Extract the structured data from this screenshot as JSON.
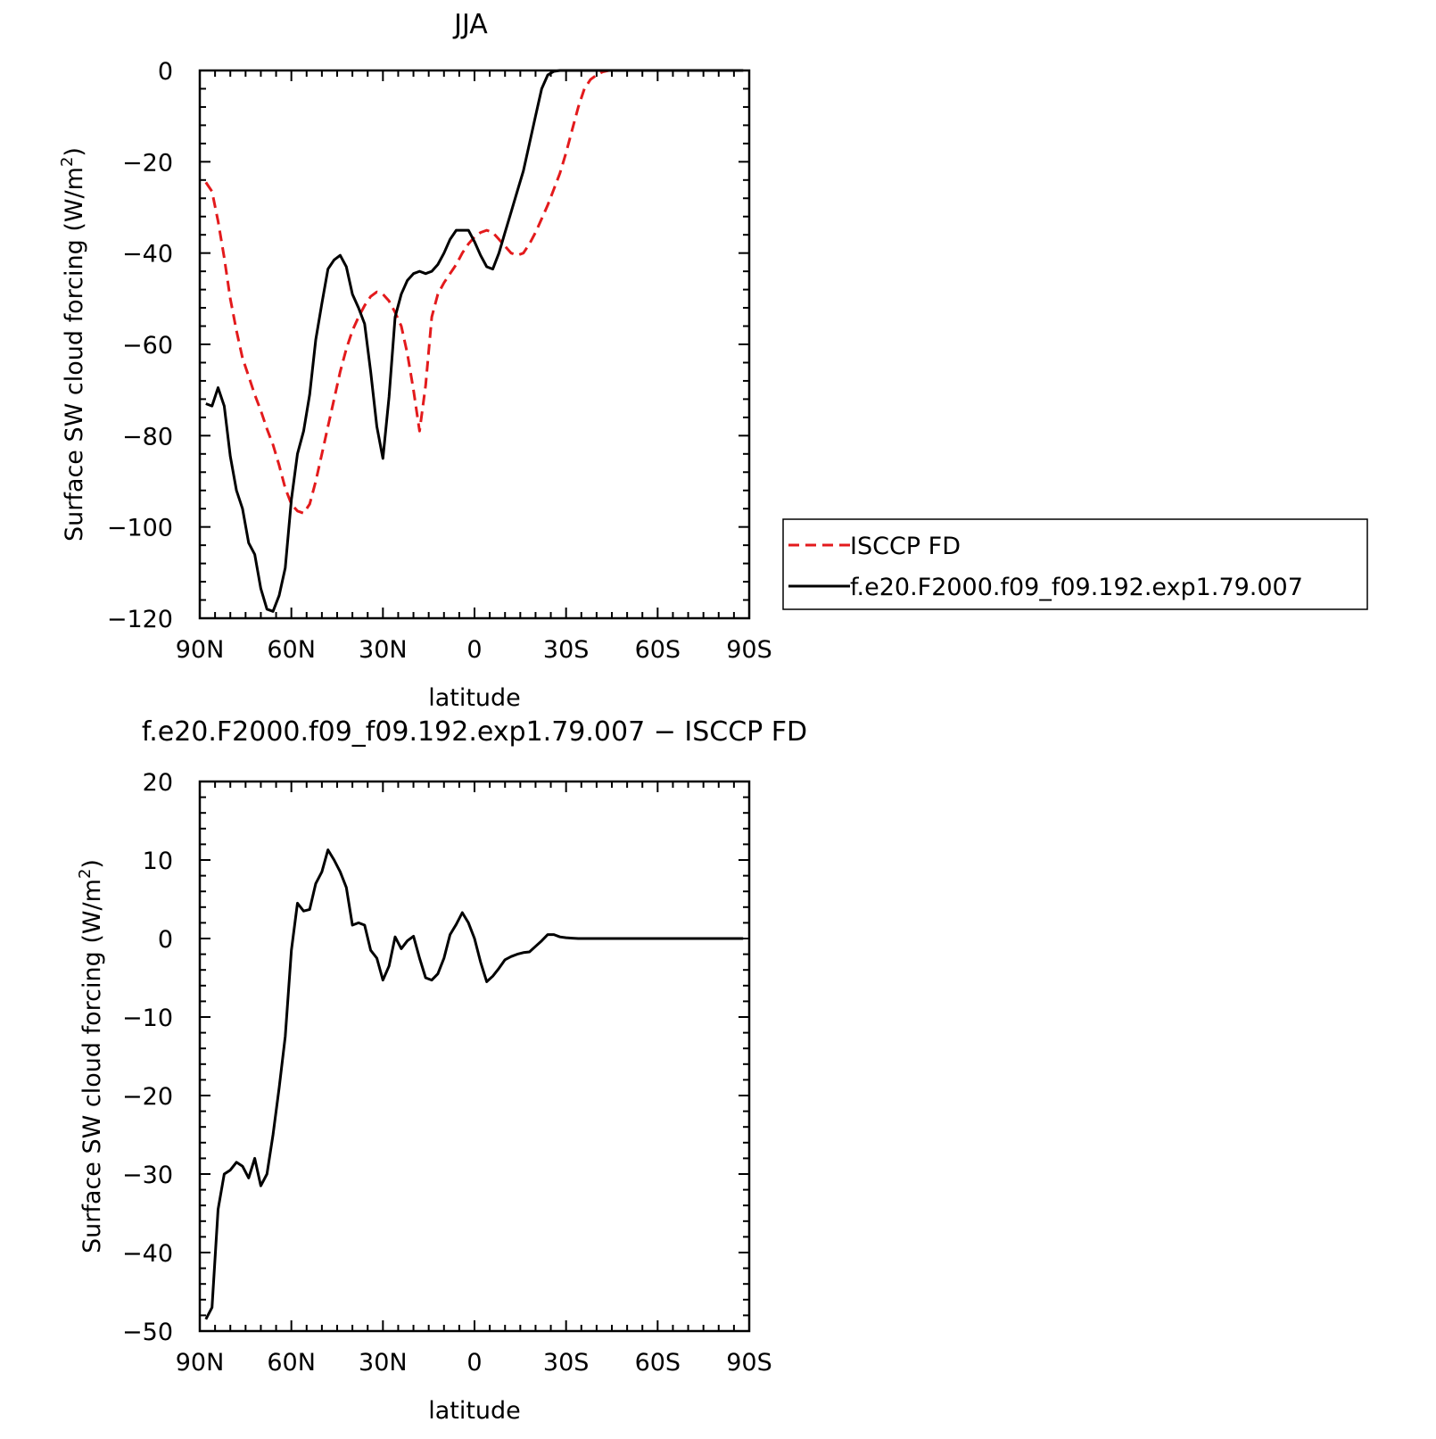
{
  "figure": {
    "top_title": "JJA",
    "bottom_title": "f.e20.F2000.f09_f09.192.exp1.79.007 − ISCCP FD"
  },
  "chart_data": [
    {
      "type": "line",
      "title": "JJA",
      "xlabel": "latitude",
      "ylabel_main": "Surface SW cloud forcing (W/m",
      "ylabel_sup": "2",
      "ylabel_end": ")",
      "xlim": [
        90,
        -90
      ],
      "ylim": [
        -120,
        0
      ],
      "xticks": [
        90,
        60,
        30,
        0,
        -30,
        -60,
        -90
      ],
      "xticklabels": [
        "90N",
        "60N",
        "30N",
        "0",
        "30S",
        "60S",
        "90S"
      ],
      "yticks": [
        0,
        -20,
        -40,
        -60,
        -80,
        -100,
        -120
      ],
      "yticklabels": [
        "0",
        "−20",
        "−40",
        "−60",
        "−80",
        "−100",
        "−120"
      ],
      "legend": {
        "placement": "right-outside"
      },
      "series": [
        {
          "name": "ISCCP FD",
          "color": "#e31a1c",
          "dash": "dashed",
          "x": [
            88,
            86,
            84,
            82,
            80,
            78,
            76,
            74,
            72,
            70,
            68,
            66,
            64,
            62,
            60,
            58,
            56,
            54,
            52,
            50,
            48,
            46,
            44,
            42,
            40,
            38,
            36,
            34,
            32,
            30,
            28,
            26,
            24,
            22,
            20,
            18,
            16,
            14,
            12,
            10,
            8,
            6,
            4,
            2,
            0,
            -2,
            -4,
            -6,
            -8,
            -10,
            -12,
            -14,
            -16,
            -18,
            -20,
            -22,
            -24,
            -26,
            -28,
            -30,
            -32,
            -34,
            -36,
            -38,
            -40,
            -42,
            -44,
            -46,
            -48,
            -50,
            -52,
            -54,
            -56,
            -58,
            -60,
            -62,
            -64,
            -66,
            -68,
            -70,
            -72,
            -74,
            -76,
            -78,
            -80,
            -82,
            -84,
            -86,
            -88
          ],
          "y": [
            -24.5,
            -26.5,
            -33,
            -41,
            -50,
            -57,
            -63,
            -67,
            -71,
            -74.5,
            -78.5,
            -82,
            -86.5,
            -91.5,
            -95,
            -96.5,
            -97,
            -95,
            -90,
            -84,
            -78,
            -72,
            -66,
            -61,
            -57,
            -54,
            -51.5,
            -49.5,
            -48.5,
            -49,
            -50.5,
            -53,
            -56,
            -62,
            -70,
            -79,
            -69,
            -54,
            -49,
            -46.5,
            -44.5,
            -42.5,
            -40,
            -38,
            -36.5,
            -35.5,
            -35,
            -35.5,
            -37,
            -38.5,
            -40,
            -40.5,
            -40,
            -38,
            -35.5,
            -32.5,
            -29.5,
            -26,
            -22.5,
            -18,
            -13,
            -8,
            -4,
            -2,
            -1,
            -0.3,
            0,
            0,
            0,
            0,
            0,
            0,
            0,
            0,
            0,
            0,
            0,
            0,
            0,
            0,
            0,
            0,
            0,
            0,
            0,
            0,
            0,
            0,
            0
          ]
        },
        {
          "name": "f.e20.F2000.f09_f09.192.exp1.79.007",
          "color": "#000000",
          "dash": "solid",
          "x": [
            88,
            86,
            84,
            82,
            80,
            78,
            76,
            74,
            72,
            70,
            68,
            66,
            64,
            62,
            60,
            58,
            56,
            54,
            52,
            50,
            48,
            46,
            44,
            42,
            40,
            38,
            36,
            34,
            32,
            30,
            28,
            26,
            24,
            22,
            20,
            18,
            16,
            14,
            12,
            10,
            8,
            6,
            4,
            2,
            0,
            -2,
            -4,
            -6,
            -8,
            -10,
            -12,
            -14,
            -16,
            -18,
            -20,
            -22,
            -24,
            -26,
            -28,
            -30,
            -32,
            -34,
            -36,
            -38,
            -40,
            -42,
            -44,
            -46,
            -48,
            -50,
            -52,
            -54,
            -56,
            -58,
            -60,
            -62,
            -64,
            -66,
            -68,
            -70,
            -72,
            -74,
            -76,
            -78,
            -80,
            -82,
            -84,
            -86,
            -88
          ],
          "y": [
            -73,
            -73.5,
            -69.5,
            -73.5,
            -84.5,
            -92,
            -96,
            -103.5,
            -106,
            -113.5,
            -118,
            -118.5,
            -115,
            -109,
            -94,
            -84,
            -79,
            -71,
            -59,
            -51,
            -43.5,
            -41.5,
            -40.5,
            -43,
            -49,
            -52,
            -55.5,
            -66,
            -78,
            -85,
            -71.5,
            -54,
            -49,
            -46,
            -44.5,
            -44,
            -44.5,
            -44,
            -42.5,
            -40,
            -37,
            -35,
            -35,
            -35,
            -37.5,
            -40.5,
            -43,
            -43.5,
            -40,
            -35.5,
            -31,
            -26.5,
            -22,
            -16,
            -10,
            -4,
            -1,
            -0.2,
            0,
            0,
            0,
            0,
            0,
            0,
            0,
            0,
            0,
            0,
            0,
            0,
            0,
            0,
            0,
            0,
            0,
            0,
            0,
            0,
            0,
            0,
            0,
            0,
            0,
            0,
            0,
            0,
            0,
            0,
            0
          ]
        }
      ]
    },
    {
      "type": "line",
      "title": "f.e20.F2000.f09_f09.192.exp1.79.007 − ISCCP FD",
      "xlabel": "latitude",
      "ylabel_main": "Surface SW cloud forcing (W/m",
      "ylabel_sup": "2",
      "ylabel_end": ")",
      "xlim": [
        90,
        -90
      ],
      "ylim": [
        -50,
        20
      ],
      "xticks": [
        90,
        60,
        30,
        0,
        -30,
        -60,
        -90
      ],
      "xticklabels": [
        "90N",
        "60N",
        "30N",
        "0",
        "30S",
        "60S",
        "90S"
      ],
      "yticks": [
        20,
        10,
        0,
        -10,
        -20,
        -30,
        -40,
        -50
      ],
      "yticklabels": [
        "20",
        "10",
        "0",
        "−10",
        "−20",
        "−30",
        "−40",
        "−50"
      ],
      "series": [
        {
          "color": "#000000",
          "dash": "solid",
          "x": [
            88,
            86,
            84,
            82,
            80,
            78,
            76,
            74,
            72,
            70,
            68,
            66,
            64,
            62,
            60,
            58,
            56,
            54,
            52,
            50,
            48,
            46,
            44,
            42,
            40,
            38,
            36,
            34,
            32,
            30,
            28,
            26,
            24,
            22,
            20,
            18,
            16,
            14,
            12,
            10,
            8,
            6,
            4,
            2,
            0,
            -2,
            -4,
            -6,
            -8,
            -10,
            -12,
            -14,
            -16,
            -18,
            -20,
            -22,
            -24,
            -26,
            -28,
            -30,
            -32,
            -34,
            -36,
            -38,
            -40,
            -42,
            -44,
            -46,
            -48,
            -50,
            -52,
            -54,
            -56,
            -58,
            -60,
            -62,
            -64,
            -66,
            -68,
            -70,
            -72,
            -74,
            -76,
            -78,
            -80,
            -82,
            -84,
            -86,
            -88
          ],
          "y": [
            -48.5,
            -47,
            -34.5,
            -30,
            -29.5,
            -28.5,
            -29,
            -30.5,
            -28,
            -31.5,
            -30,
            -25,
            -19,
            -12.5,
            -1.5,
            4.5,
            3.5,
            3.7,
            7,
            8.5,
            11.3,
            10,
            8.5,
            6.5,
            1.7,
            2,
            1.7,
            -1.5,
            -2.5,
            -5.3,
            -3.5,
            0.2,
            -1.3,
            -0.3,
            0.3,
            -2.5,
            -5,
            -5.3,
            -4.5,
            -2.5,
            0.5,
            1.8,
            3.3,
            2,
            0,
            -3,
            -5.5,
            -4.8,
            -3.8,
            -2.7,
            -2.3,
            -2,
            -1.8,
            -1.7,
            -1,
            -0.3,
            0.5,
            0.5,
            0.2,
            0.1,
            0.05,
            0,
            0,
            0,
            0,
            0,
            0,
            0,
            0,
            0,
            0,
            0,
            0,
            0,
            0,
            0,
            0,
            0,
            0,
            0,
            0,
            0,
            0,
            0,
            0,
            0,
            0,
            0,
            0
          ]
        }
      ]
    }
  ]
}
